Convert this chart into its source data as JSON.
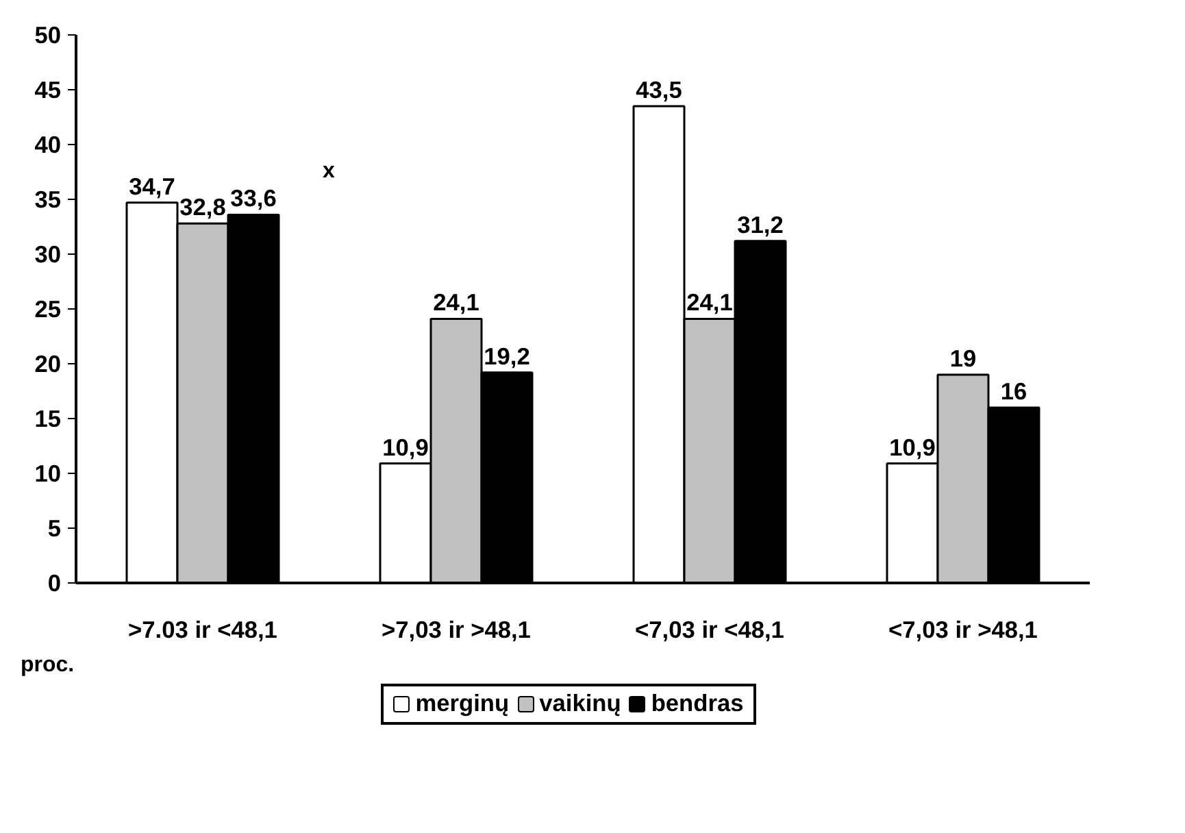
{
  "chart_data": {
    "type": "bar",
    "categories": [
      ">7.03 ir <48,1",
      ">7,03 ir >48,1",
      "<7,03 ir <48,1",
      "<7,03 ir >48,1"
    ],
    "series": [
      {
        "name": "merginų",
        "color": "#ffffff",
        "values": [
          34.7,
          10.9,
          43.5,
          10.9
        ],
        "value_labels": [
          "34,7",
          "10,9",
          "43,5",
          "10,9"
        ]
      },
      {
        "name": "vaikinų",
        "color": "#c0c0c0",
        "values": [
          32.8,
          24.1,
          24.1,
          19
        ],
        "value_labels": [
          "32,8",
          "24,1",
          "24,1",
          "19"
        ]
      },
      {
        "name": "bendras",
        "color": "#000000",
        "values": [
          33.6,
          19.2,
          31.2,
          16
        ],
        "value_labels": [
          "33,6",
          "19,2",
          "31,2",
          "16"
        ]
      }
    ],
    "ylim": [
      0,
      50
    ],
    "yticks": [
      0,
      5,
      10,
      15,
      20,
      25,
      30,
      35,
      40,
      45,
      50
    ],
    "grid": false,
    "legend": "bottom",
    "annotations": [
      "x",
      "proc."
    ]
  }
}
